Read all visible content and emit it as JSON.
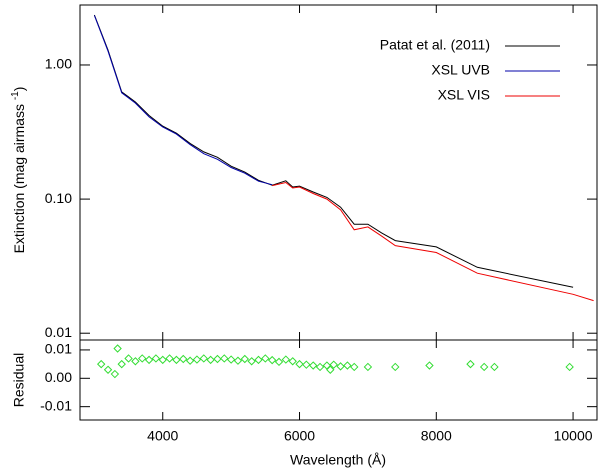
{
  "chart_data": [
    {
      "type": "line",
      "ylabel": "Extinction (mag airmass",
      "ylabel_sup": "-1",
      "ylabel_end": ")",
      "log_y": true,
      "legend": "upper right",
      "x": [
        3000,
        3200,
        3400,
        3600,
        3800,
        4000,
        4200,
        4400,
        4600,
        4800,
        5000,
        5200,
        5400,
        5600,
        5800,
        5900,
        6000,
        6200,
        6400,
        6600,
        6800,
        7000,
        7200,
        7400,
        8000,
        8600,
        10000,
        10300
      ],
      "series": [
        {
          "name": "Patat et al. (2011)",
          "color": "#000000",
          "values": [
            2.36,
            1.29,
            0.63,
            0.53,
            0.42,
            0.35,
            0.31,
            0.26,
            0.225,
            0.205,
            0.176,
            0.159,
            0.138,
            0.127,
            0.137,
            0.123,
            0.125,
            0.113,
            0.103,
            0.087,
            0.065,
            0.065,
            0.056,
            0.049,
            0.044,
            0.031,
            0.022,
            null
          ]
        },
        {
          "name": "XSL UVB",
          "color": "#0000aa",
          "values": [
            2.34,
            1.27,
            0.62,
            0.52,
            0.41,
            0.345,
            0.305,
            0.255,
            0.218,
            0.198,
            0.172,
            0.156,
            0.136,
            0.128,
            null,
            null,
            null,
            null,
            null,
            null,
            null,
            null,
            null,
            null,
            null,
            null,
            null,
            null
          ]
        },
        {
          "name": "XSL VIS",
          "color": "#ee0000",
          "values": [
            null,
            null,
            null,
            null,
            null,
            null,
            null,
            null,
            null,
            null,
            null,
            null,
            null,
            0.126,
            0.133,
            0.121,
            0.123,
            0.11,
            0.1,
            0.083,
            0.059,
            0.062,
            0.053,
            0.045,
            0.04,
            0.028,
            0.0195,
            0.0175
          ]
        }
      ],
      "xlim": [
        2790,
        10350
      ],
      "ylim": [
        0.0089,
        2.8
      ],
      "yticks": [
        {
          "value": 1,
          "label": "1.00"
        },
        {
          "value": 0.1,
          "label": "0.10"
        },
        0.01
      ]
    },
    {
      "type": "scatter",
      "ylabel": "Residual",
      "xlabel": "Wavelength (Å)",
      "color": "#33dd33",
      "x": [
        3100,
        3200,
        3300,
        3340,
        3400,
        3500,
        3600,
        3700,
        3800,
        3900,
        4000,
        4100,
        4200,
        4300,
        4400,
        4500,
        4600,
        4700,
        4800,
        4900,
        5000,
        5100,
        5200,
        5300,
        5400,
        5500,
        5600,
        5700,
        5800,
        5900,
        6000,
        6100,
        6200,
        6300,
        6400,
        6450,
        6500,
        6600,
        6700,
        6800,
        7000,
        7400,
        7900,
        8500,
        8700,
        8850,
        9950
      ],
      "values": [
        0.005,
        0.003,
        0.0015,
        0.0105,
        0.005,
        0.007,
        0.006,
        0.007,
        0.0065,
        0.007,
        0.0065,
        0.007,
        0.0065,
        0.0068,
        0.0062,
        0.0066,
        0.007,
        0.0065,
        0.0068,
        0.007,
        0.0066,
        0.0062,
        0.0068,
        0.006,
        0.0065,
        0.007,
        0.0064,
        0.0058,
        0.0066,
        0.006,
        0.005,
        0.0048,
        0.0045,
        0.004,
        0.0045,
        0.003,
        0.0048,
        0.0042,
        0.0045,
        0.004,
        0.004,
        0.004,
        0.0045,
        0.005,
        0.004,
        0.004,
        0.004
      ],
      "xlim": [
        2790,
        10350
      ],
      "ylim": [
        -0.0147,
        0.0135
      ],
      "xticks": [
        4000,
        6000,
        8000,
        10000
      ],
      "yticks": [
        0.01,
        {
          "value": 0,
          "label": "0.00"
        },
        -0.01
      ]
    }
  ]
}
